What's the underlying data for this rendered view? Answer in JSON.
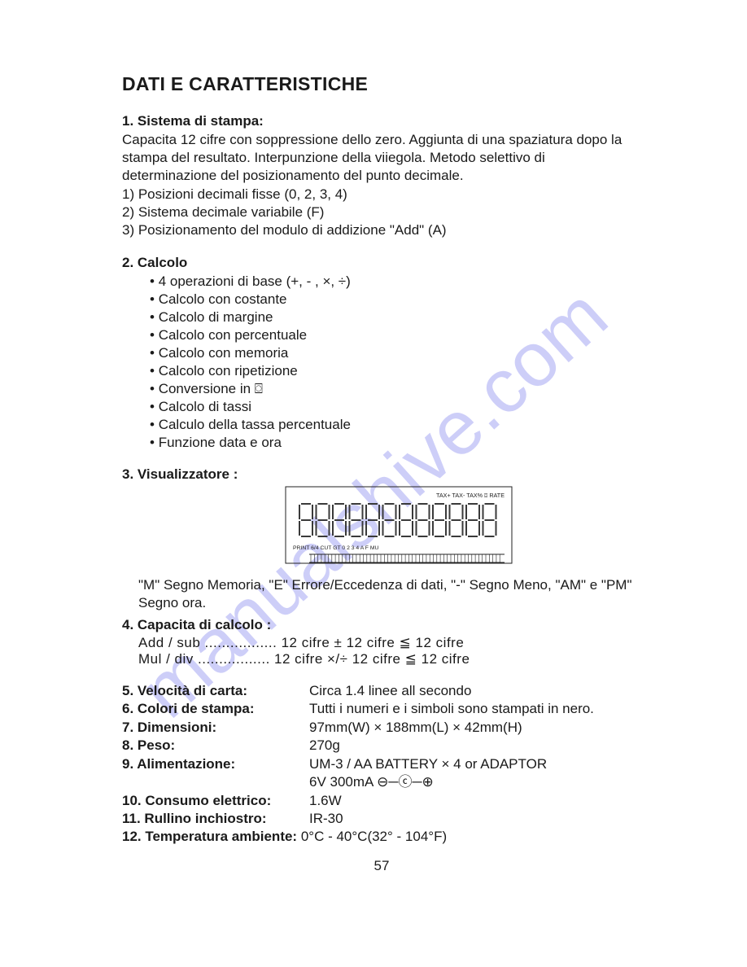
{
  "watermark": "manualshive.com",
  "title": "DATI E CARATTERISTICHE",
  "s1": {
    "heading": "1. Sistema di stampa:",
    "body": "Capacita 12 cifre con soppressione dello zero. Aggiunta di una spaziatura dopo la stampa del resultato. Interpunzione della viiegola. Metodo selettivo di determinazione del posizionamento del punto decimale.",
    "l1": "1) Posizioni decimali fisse (0, 2, 3, 4)",
    "l2": "2) Sistema decimale variabile (F)",
    "l3": "3) Posizionamento del modulo di addizione \"Add\" (A)"
  },
  "s2": {
    "heading": "2. Calcolo",
    "items": [
      "4 operazioni di base (+, - , ×, ÷)",
      "Calcolo con costante",
      "Calcolo di margine",
      "Calcolo con percentuale",
      "Calcolo con memoria",
      "Calcolo con ripetizione",
      "Conversione in  ⌼",
      "Calcolo di tassi",
      "Calculo della tassa percentuale",
      "Funzione data e ora"
    ]
  },
  "s3": {
    "heading": "3. Visualizzatore :",
    "display": {
      "top_labels": "TAX+   TAX-   TAX%  ⌼   RATE",
      "bottom_labels": "PRINT        6/4   CUT   GT   0   2   3   4   A   F   MU"
    },
    "note": "\"M\" Segno Memoria, \"E\" Errore/Eccedenza di dati, \"-\" Segno Meno, \"AM\" e \"PM\" Segno ora."
  },
  "s4": {
    "heading": "4. Capacita di calcolo :",
    "row1": "Add / sub ................. 12    cifre     ±     12      cifre   ≦   12    cifre",
    "row2": " Mul / div  ................. 12    cifre    ×/÷   12      cifre   ≦   12    cifre"
  },
  "specs": {
    "l5": "5. Velocità di carta:",
    "v5": "Circa 1.4  linee all secondo",
    "l6": "6. Colori de stampa:",
    "v6": "Tutti i numeri e i simboli sono stampati in nero.",
    "l7": "7. Dimensioni:",
    "v7": "97mm(W) × 188mm(L) × 42mm(H)",
    "l8": "8. Peso:",
    "v8": "270g",
    "l9": "9. Alimentazione:",
    "v9a": "UM-3 / AA BATTERY × 4 or ADAPTOR",
    "v9b": "6V 300mA   ⊖─ⓒ─⊕",
    "l10": "10. Consumo elettrico:",
    "v10": "1.6W",
    "l11": "11. Rullino inchiostro:",
    "v11": "IR-30",
    "l12": "12. Temperatura ambiente:",
    "v12": " 0°C - 40°C(32° - 104°F)"
  },
  "page_number": "57"
}
